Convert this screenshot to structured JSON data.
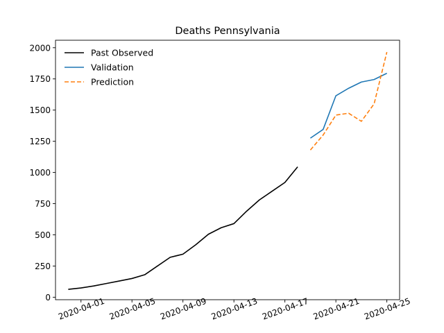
{
  "chart_data": {
    "type": "line",
    "title": "Deaths Pennsylvania",
    "xlabel": "",
    "ylabel": "",
    "xlim": [
      "2020-03-30",
      "2020-04-26"
    ],
    "ylim": [
      -20,
      2060
    ],
    "xticks": [
      "2020-04-01",
      "2020-04-05",
      "2020-04-09",
      "2020-04-13",
      "2020-04-17",
      "2020-04-21",
      "2020-04-25"
    ],
    "yticks": [
      0,
      250,
      500,
      750,
      1000,
      1250,
      1500,
      1750,
      2000
    ],
    "grid": false,
    "legend_position": "top-left",
    "series": [
      {
        "name": "Past Observed",
        "color": "#000000",
        "dash": "solid",
        "x": [
          "2020-03-31",
          "2020-04-01",
          "2020-04-02",
          "2020-04-03",
          "2020-04-04",
          "2020-04-05",
          "2020-04-06",
          "2020-04-07",
          "2020-04-08",
          "2020-04-09",
          "2020-04-10",
          "2020-04-11",
          "2020-04-12",
          "2020-04-13",
          "2020-04-14",
          "2020-04-15",
          "2020-04-16",
          "2020-04-17",
          "2020-04-18"
        ],
        "y": [
          63,
          74,
          90,
          110,
          130,
          150,
          180,
          250,
          320,
          345,
          420,
          505,
          557,
          590,
          690,
          780,
          850,
          920,
          1045
        ]
      },
      {
        "name": "Validation",
        "color": "#1f77b4",
        "dash": "solid",
        "x": [
          "2020-04-19",
          "2020-04-20",
          "2020-04-21",
          "2020-04-22",
          "2020-04-23",
          "2020-04-24",
          "2020-04-25"
        ],
        "y": [
          1275,
          1345,
          1615,
          1675,
          1725,
          1745,
          1795
        ]
      },
      {
        "name": "Prediction",
        "color": "#ff7f0e",
        "dash": "dashed",
        "x": [
          "2020-04-19",
          "2020-04-20",
          "2020-04-21",
          "2020-04-22",
          "2020-04-23",
          "2020-04-24",
          "2020-04-25"
        ],
        "y": [
          1180,
          1300,
          1460,
          1475,
          1410,
          1550,
          1965
        ]
      }
    ]
  }
}
